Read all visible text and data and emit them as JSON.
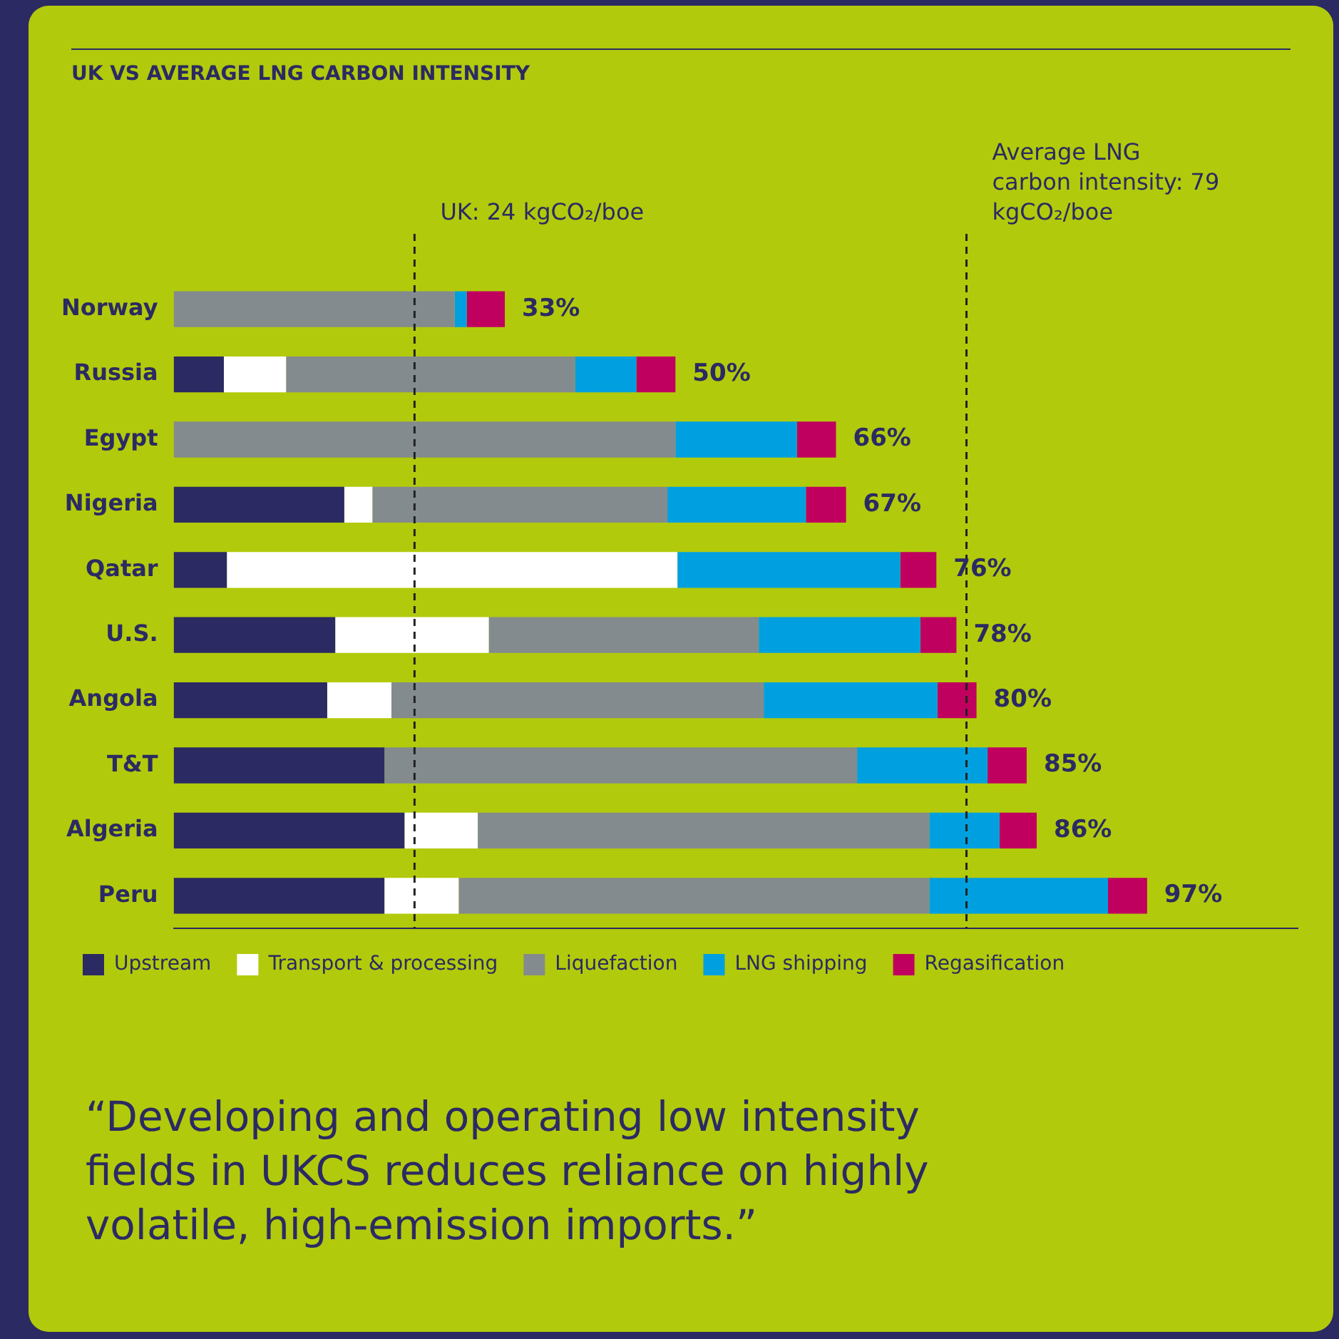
{
  "chart_data": {
    "type": "bar",
    "orientation": "horizontal",
    "stacked": true,
    "title": "UK VS AVERAGE LNG CARBON INTENSITY",
    "categories": [
      "Norway",
      "Russia",
      "Egypt",
      "Nigeria",
      "Qatar",
      "U.S.",
      "Angola",
      "T&T",
      "Algeria",
      "Peru"
    ],
    "series": [
      {
        "name": "Upstream",
        "color": "#2b2a63",
        "values": [
          0,
          5,
          0,
          17,
          5.3,
          16.1,
          15.3,
          21,
          23,
          21
        ]
      },
      {
        "name": "Transport & processing",
        "color": "#ffffff",
        "values": [
          0,
          6.2,
          0,
          2.8,
          44.9,
          15.3,
          6.4,
          0,
          7.3,
          7.4
        ]
      },
      {
        "name": "Liquefaction",
        "color": "#838b8e",
        "values": [
          28,
          28.8,
          50,
          29.4,
          0,
          26.9,
          37.1,
          47.1,
          45,
          46.9
        ]
      },
      {
        "name": "LNG shipping",
        "color": "#00a0e0",
        "values": [
          1.2,
          6.1,
          12.1,
          13.8,
          22.2,
          16.1,
          17.3,
          13,
          7,
          17.8
        ]
      },
      {
        "name": "Regasification",
        "color": "#c0005e",
        "values": [
          3.8,
          3.9,
          3.9,
          4,
          3.6,
          3.6,
          3.9,
          3.9,
          3.7,
          3.9
        ]
      }
    ],
    "totals": [
      "33%",
      "50%",
      "66%",
      "67%",
      "76%",
      "78%",
      "80%",
      "85%",
      "86%",
      "97%"
    ],
    "xlim": [
      0,
      112
    ],
    "tick_labels": "y",
    "legend": "bottom",
    "ref_lines": [
      {
        "axis": "x",
        "value": 24,
        "label": "UK: 24 kgCO₂/boe",
        "color": "#222222",
        "line_style": "dashed"
      },
      {
        "axis": "x",
        "value": 79,
        "label": "Average LNG carbon intensity: 79 kgCO₂/boe",
        "color": "#222222",
        "line_style": "dashed"
      }
    ],
    "annotations": [
      "“Developing and operating low intensity fields in UKCS reduces reliance on highly volatile, high-emission imports.”"
    ]
  }
}
